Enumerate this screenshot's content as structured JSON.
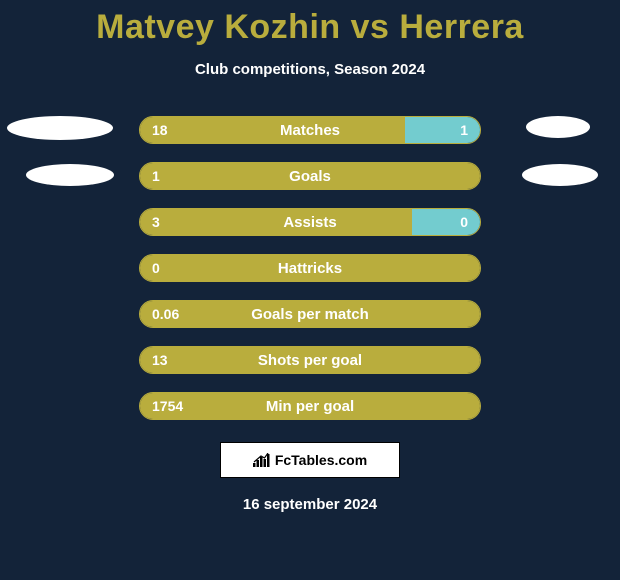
{
  "title": "Matvey Kozhin vs Herrera",
  "subtitle": "Club competitions, Season 2024",
  "colors": {
    "background": "#132339",
    "accent": "#b9ad3d",
    "secondary": "#73cccf",
    "text": "#ffffff",
    "ellipse": "#ffffff"
  },
  "typography": {
    "title_fontsize": 34,
    "title_weight": 800,
    "subtitle_fontsize": 15,
    "stat_label_fontsize": 15,
    "stat_value_fontsize": 14
  },
  "layout": {
    "stat_row_width": 342,
    "stat_row_height": 28,
    "stat_row_gap": 18,
    "stat_row_radius": 14
  },
  "stats": [
    {
      "label": "Matches",
      "left_value": "18",
      "right_value": "1",
      "left_pct": 78,
      "right_pct": 22
    },
    {
      "label": "Goals",
      "left_value": "1",
      "right_value": "",
      "left_pct": 100,
      "right_pct": 0
    },
    {
      "label": "Assists",
      "left_value": "3",
      "right_value": "0",
      "left_pct": 80,
      "right_pct": 20
    },
    {
      "label": "Hattricks",
      "left_value": "0",
      "right_value": "",
      "left_pct": 100,
      "right_pct": 0
    },
    {
      "label": "Goals per match",
      "left_value": "0.06",
      "right_value": "",
      "left_pct": 100,
      "right_pct": 0
    },
    {
      "label": "Shots per goal",
      "left_value": "13",
      "right_value": "",
      "left_pct": 100,
      "right_pct": 0
    },
    {
      "label": "Min per goal",
      "left_value": "1754",
      "right_value": "",
      "left_pct": 100,
      "right_pct": 0
    }
  ],
  "branding": {
    "text": "FcTables.com"
  },
  "date": "16 september 2024"
}
